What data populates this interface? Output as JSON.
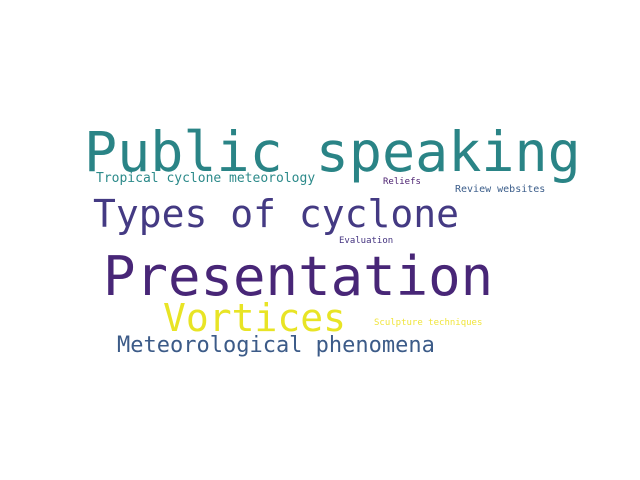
{
  "words": [
    {
      "text": "Public speaking",
      "color": "#2a8486"
    },
    {
      "text": "Tropical cyclone meteorology",
      "color": "#2c8a8a"
    },
    {
      "text": "Reliefs",
      "color": "#4b2070"
    },
    {
      "text": "Review websites",
      "color": "#3b5d8a"
    },
    {
      "text": "Types of cyclone",
      "color": "#443a83"
    },
    {
      "text": "Evaluation",
      "color": "#453480"
    },
    {
      "text": "Presentation",
      "color": "#482677"
    },
    {
      "text": "Vortices",
      "color": "#e8e425"
    },
    {
      "text": "Sculpture techniques",
      "color": "#f0e53c"
    },
    {
      "text": "Meteorological phenomena",
      "color": "#3c5b88"
    }
  ]
}
